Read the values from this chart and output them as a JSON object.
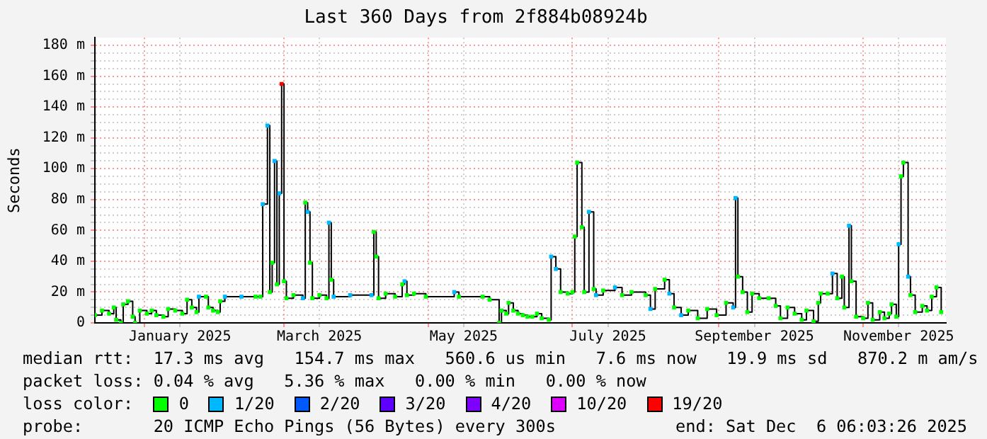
{
  "chart_data": {
    "type": "step",
    "title": "Last 360 Days from 2f884b08924b",
    "ylabel": "Seconds",
    "x": [
      "2024-12-11",
      "2024-12-14",
      "2024-12-17",
      "2024-12-19",
      "2024-12-20",
      "2024-12-22",
      "2024-12-23",
      "2024-12-25",
      "2024-12-27",
      "2024-12-28",
      "2024-12-30",
      "2025-01-02",
      "2025-01-04",
      "2025-01-06",
      "2025-01-09",
      "2025-01-11",
      "2025-01-14",
      "2025-01-17",
      "2025-01-19",
      "2025-01-21",
      "2025-01-23",
      "2025-01-24",
      "2025-01-27",
      "2025-01-28",
      "2025-01-30",
      "2025-02-01",
      "2025-02-02",
      "2025-02-04",
      "2025-02-11",
      "2025-02-17",
      "2025-02-19",
      "2025-02-20",
      "2025-02-22",
      "2025-02-23",
      "2025-02-24",
      "2025-02-25",
      "2025-02-26",
      "2025-02-27",
      "2025-02-28",
      "2025-03-01",
      "2025-03-02",
      "2025-03-05",
      "2025-03-09",
      "2025-03-10",
      "2025-03-11",
      "2025-03-12",
      "2025-03-13",
      "2025-03-16",
      "2025-03-19",
      "2025-03-20",
      "2025-03-21",
      "2025-03-22",
      "2025-03-29",
      "2025-04-07",
      "2025-04-08",
      "2025-04-09",
      "2025-04-10",
      "2025-04-13",
      "2025-04-17",
      "2025-04-20",
      "2025-04-21",
      "2025-04-22",
      "2025-04-25",
      "2025-04-30",
      "2025-05-12",
      "2025-05-14",
      "2025-05-24",
      "2025-05-27",
      "2025-05-31",
      "2025-06-01",
      "2025-06-03",
      "2025-06-04",
      "2025-06-06",
      "2025-06-08",
      "2025-06-10",
      "2025-06-12",
      "2025-06-14",
      "2025-06-16",
      "2025-06-18",
      "2025-06-21",
      "2025-06-22",
      "2025-06-24",
      "2025-06-26",
      "2025-06-29",
      "2025-07-01",
      "2025-07-02",
      "2025-07-03",
      "2025-07-05",
      "2025-07-06",
      "2025-07-08",
      "2025-07-10",
      "2025-07-11",
      "2025-07-14",
      "2025-07-19",
      "2025-07-22",
      "2025-07-26",
      "2025-08-01",
      "2025-08-03",
      "2025-08-05",
      "2025-08-09",
      "2025-08-11",
      "2025-08-13",
      "2025-08-16",
      "2025-08-19",
      "2025-08-23",
      "2025-08-27",
      "2025-08-31",
      "2025-09-04",
      "2025-09-07",
      "2025-09-08",
      "2025-09-09",
      "2025-09-11",
      "2025-09-13",
      "2025-09-15",
      "2025-09-18",
      "2025-09-22",
      "2025-09-25",
      "2025-09-27",
      "2025-09-30",
      "2025-10-03",
      "2025-10-06",
      "2025-10-08",
      "2025-10-11",
      "2025-10-13",
      "2025-10-14",
      "2025-10-17",
      "2025-10-19",
      "2025-10-21",
      "2025-10-23",
      "2025-10-24",
      "2025-10-26",
      "2025-10-27",
      "2025-10-29",
      "2025-11-01",
      "2025-11-03",
      "2025-11-05",
      "2025-11-08",
      "2025-11-10",
      "2025-11-12",
      "2025-11-13",
      "2025-11-15",
      "2025-11-16",
      "2025-11-17",
      "2025-11-18",
      "2025-11-20",
      "2025-11-21",
      "2025-11-23",
      "2025-11-26",
      "2025-11-28",
      "2025-11-30",
      "2025-12-02",
      "2025-12-04"
    ],
    "series": [
      {
        "color": "#000000",
        "values": [
          5,
          8,
          6,
          10,
          2,
          0,
          12,
          14,
          4,
          0,
          8,
          6,
          8,
          5,
          4,
          9,
          8,
          6,
          15,
          10,
          7,
          17,
          17,
          10,
          8,
          7,
          14,
          17,
          17,
          17,
          17,
          77,
          128,
          20,
          39,
          105,
          25,
          84,
          155,
          27,
          16,
          18,
          16,
          78,
          72,
          39,
          16,
          18,
          16,
          65,
          28,
          17,
          18,
          18,
          59,
          43,
          16,
          19,
          17,
          25,
          27,
          18,
          19,
          17,
          20,
          17,
          17,
          15,
          0,
          8,
          6,
          13,
          8,
          6,
          5,
          4,
          4,
          6,
          3,
          2,
          43,
          35,
          20,
          19,
          20,
          56,
          104,
          62,
          20,
          72,
          22,
          18,
          21,
          23,
          18,
          20,
          18,
          9,
          22,
          28,
          19,
          10,
          5,
          8,
          3,
          9,
          5,
          13,
          10,
          81,
          30,
          20,
          7,
          19,
          16,
          16,
          11,
          3,
          10,
          6,
          2,
          8,
          1,
          13,
          19,
          19,
          32,
          16,
          30,
          10,
          63,
          27,
          4,
          3,
          13,
          2,
          7,
          3,
          6,
          12,
          4,
          51,
          95,
          104,
          30,
          18,
          7,
          11,
          8,
          17,
          23,
          7
        ]
      },
      {
        "type": "scatter",
        "marker": "square",
        "name": "0",
        "color": "#00ff00",
        "values": [
          5,
          8,
          6,
          10,
          2,
          0,
          12,
          14,
          4,
          0,
          8,
          6,
          8,
          5,
          4,
          9,
          8,
          6,
          15,
          10,
          7,
          null,
          17,
          10,
          8,
          7,
          14,
          null,
          null,
          17,
          17,
          null,
          null,
          20,
          39,
          null,
          25,
          null,
          null,
          27,
          16,
          18,
          null,
          78,
          null,
          39,
          16,
          18,
          16,
          null,
          28,
          null,
          null,
          null,
          59,
          43,
          16,
          19,
          17,
          25,
          null,
          18,
          19,
          17,
          null,
          17,
          17,
          15,
          0,
          8,
          6,
          13,
          8,
          6,
          5,
          4,
          4,
          6,
          3,
          2,
          null,
          null,
          20,
          19,
          20,
          56,
          104,
          62,
          20,
          null,
          22,
          null,
          21,
          null,
          18,
          20,
          18,
          null,
          22,
          28,
          null,
          10,
          null,
          8,
          3,
          9,
          5,
          13,
          null,
          null,
          30,
          20,
          7,
          19,
          16,
          16,
          11,
          3,
          10,
          6,
          2,
          8,
          1,
          13,
          19,
          19,
          null,
          16,
          30,
          10,
          null,
          27,
          4,
          3,
          13,
          2,
          7,
          3,
          6,
          12,
          4,
          null,
          95,
          104,
          null,
          18,
          7,
          11,
          8,
          17,
          23,
          7
        ]
      },
      {
        "type": "scatter",
        "marker": "square",
        "name": "1/20",
        "color": "#00b8ff",
        "values": [
          null,
          null,
          null,
          null,
          null,
          null,
          null,
          null,
          null,
          null,
          null,
          null,
          null,
          null,
          null,
          null,
          null,
          null,
          null,
          null,
          null,
          17,
          null,
          null,
          null,
          null,
          null,
          17,
          17,
          null,
          null,
          77,
          128,
          null,
          null,
          105,
          null,
          84,
          null,
          null,
          null,
          null,
          16,
          null,
          72,
          null,
          null,
          null,
          null,
          65,
          null,
          17,
          18,
          18,
          null,
          null,
          null,
          null,
          null,
          null,
          27,
          null,
          null,
          null,
          20,
          null,
          null,
          null,
          null,
          null,
          null,
          null,
          null,
          null,
          null,
          null,
          null,
          null,
          null,
          null,
          43,
          35,
          null,
          null,
          null,
          null,
          null,
          null,
          null,
          72,
          null,
          18,
          null,
          23,
          null,
          null,
          null,
          9,
          null,
          null,
          19,
          null,
          5,
          null,
          null,
          null,
          null,
          null,
          10,
          81,
          null,
          null,
          null,
          null,
          null,
          null,
          null,
          null,
          null,
          null,
          null,
          null,
          null,
          null,
          null,
          null,
          32,
          null,
          null,
          null,
          63,
          null,
          null,
          null,
          null,
          null,
          null,
          null,
          null,
          null,
          null,
          51,
          null,
          null,
          30,
          null,
          null,
          null,
          null,
          null,
          null,
          null
        ]
      },
      {
        "type": "scatter",
        "marker": "square",
        "name": "2/20",
        "color": "#0059ff",
        "values": [
          null,
          null,
          null,
          null,
          null,
          null,
          null,
          null,
          null,
          null,
          null,
          null,
          null,
          null,
          null,
          null,
          null,
          null,
          null,
          null,
          null,
          null,
          null,
          null,
          null,
          null,
          null,
          null,
          null,
          null,
          null,
          null,
          null,
          null,
          null,
          null,
          null,
          null,
          null,
          null,
          null,
          null,
          null,
          null,
          null,
          null,
          null,
          null,
          null,
          null,
          null,
          null,
          null,
          null,
          null,
          null,
          null,
          null,
          null,
          null,
          null,
          null,
          null,
          null,
          null,
          null,
          null,
          null,
          null,
          null,
          null,
          null,
          null,
          null,
          null,
          null,
          null,
          null,
          null,
          null,
          null,
          null,
          null,
          null,
          null,
          null,
          null,
          null,
          null,
          null,
          null,
          null,
          null,
          null,
          null,
          null,
          null,
          null,
          null,
          null,
          null,
          null,
          null,
          null,
          null,
          null,
          null,
          null,
          null,
          null,
          null,
          null,
          null,
          null,
          null,
          null,
          null,
          null,
          null,
          null,
          null,
          null,
          null,
          null,
          null,
          null,
          null,
          null,
          null,
          null,
          null,
          null,
          null,
          null,
          null,
          null,
          null,
          null,
          null,
          null,
          null,
          null,
          null,
          null,
          null,
          null,
          null,
          null,
          null,
          null,
          null,
          null
        ]
      },
      {
        "type": "scatter",
        "marker": "square",
        "name": "3/20",
        "color": "#5e00ff",
        "values": [
          null,
          null,
          null,
          null,
          null,
          null,
          null,
          null,
          null,
          null,
          null,
          null,
          null,
          null,
          null,
          null,
          null,
          null,
          null,
          null,
          null,
          null,
          null,
          null,
          null,
          null,
          null,
          null,
          null,
          null,
          null,
          null,
          null,
          null,
          null,
          null,
          null,
          null,
          null,
          null,
          null,
          null,
          null,
          null,
          null,
          null,
          null,
          null,
          null,
          null,
          null,
          null,
          null,
          null,
          null,
          null,
          null,
          null,
          null,
          null,
          null,
          null,
          null,
          null,
          null,
          null,
          null,
          null,
          null,
          null,
          null,
          null,
          null,
          null,
          null,
          null,
          null,
          null,
          null,
          null,
          null,
          null,
          null,
          null,
          null,
          null,
          null,
          null,
          null,
          null,
          null,
          null,
          null,
          null,
          null,
          null,
          null,
          null,
          null,
          null,
          null,
          null,
          null,
          null,
          null,
          null,
          null,
          null,
          null,
          null,
          null,
          null,
          null,
          null,
          null,
          null,
          null,
          null,
          null,
          null,
          null,
          null,
          null,
          null,
          null,
          null,
          null,
          null,
          null,
          null,
          null,
          null,
          null,
          null,
          null,
          null,
          null,
          null,
          null,
          null,
          null,
          null,
          null,
          null,
          null,
          null,
          null,
          null,
          null,
          null,
          null,
          null
        ]
      },
      {
        "type": "scatter",
        "marker": "square",
        "name": "4/20",
        "color": "#7e00ff",
        "values": [
          null,
          null,
          null,
          null,
          null,
          null,
          null,
          null,
          null,
          null,
          null,
          null,
          null,
          null,
          null,
          null,
          null,
          null,
          null,
          null,
          null,
          null,
          null,
          null,
          null,
          null,
          null,
          null,
          null,
          null,
          null,
          null,
          null,
          null,
          null,
          null,
          null,
          null,
          null,
          null,
          null,
          null,
          null,
          null,
          null,
          null,
          null,
          null,
          null,
          null,
          null,
          null,
          null,
          null,
          null,
          null,
          null,
          null,
          null,
          null,
          null,
          null,
          null,
          null,
          null,
          null,
          null,
          null,
          null,
          null,
          null,
          null,
          null,
          null,
          null,
          null,
          null,
          null,
          null,
          null,
          null,
          null,
          null,
          null,
          null,
          null,
          null,
          null,
          null,
          null,
          null,
          null,
          null,
          null,
          null,
          null,
          null,
          null,
          null,
          null,
          null,
          null,
          null,
          null,
          null,
          null,
          null,
          null,
          null,
          null,
          null,
          null,
          null,
          null,
          null,
          null,
          null,
          null,
          null,
          null,
          null,
          null,
          null,
          null,
          null,
          null,
          null,
          null,
          null,
          null,
          null,
          null,
          null,
          null,
          null,
          null,
          null,
          null,
          null,
          null,
          null,
          null,
          null,
          null,
          null,
          null,
          null,
          null,
          null,
          null,
          null,
          null
        ]
      },
      {
        "type": "scatter",
        "marker": "square",
        "name": "10/20",
        "color": "#dd00ff",
        "values": [
          null,
          null,
          null,
          null,
          null,
          null,
          null,
          null,
          null,
          null,
          null,
          null,
          null,
          null,
          null,
          null,
          null,
          null,
          null,
          null,
          null,
          null,
          null,
          null,
          null,
          null,
          null,
          null,
          null,
          null,
          null,
          null,
          null,
          null,
          null,
          null,
          null,
          null,
          null,
          null,
          null,
          null,
          null,
          null,
          null,
          null,
          null,
          null,
          null,
          null,
          null,
          null,
          null,
          null,
          null,
          null,
          null,
          null,
          null,
          null,
          null,
          null,
          null,
          null,
          null,
          null,
          null,
          null,
          null,
          null,
          null,
          null,
          null,
          null,
          null,
          null,
          null,
          null,
          null,
          null,
          null,
          null,
          null,
          null,
          null,
          null,
          null,
          null,
          null,
          null,
          null,
          null,
          null,
          null,
          null,
          null,
          null,
          null,
          null,
          null,
          null,
          null,
          null,
          null,
          null,
          null,
          null,
          null,
          null,
          null,
          null,
          null,
          null,
          null,
          null,
          null,
          null,
          null,
          null,
          null,
          null,
          null,
          null,
          null,
          null,
          null,
          null,
          null,
          null,
          null,
          null,
          null,
          null,
          null,
          null,
          null,
          null,
          null,
          null,
          null,
          null,
          null,
          null,
          null,
          null,
          null,
          null,
          null,
          null,
          null,
          null,
          null
        ]
      },
      {
        "type": "scatter",
        "marker": "square",
        "name": "19/20",
        "color": "#ff0000",
        "values": [
          null,
          null,
          null,
          null,
          null,
          null,
          null,
          null,
          null,
          null,
          null,
          null,
          null,
          null,
          null,
          null,
          null,
          null,
          null,
          null,
          null,
          null,
          null,
          null,
          null,
          null,
          null,
          null,
          null,
          null,
          null,
          null,
          null,
          null,
          null,
          null,
          null,
          null,
          155,
          null,
          null,
          null,
          null,
          null,
          null,
          null,
          null,
          null,
          null,
          null,
          null,
          null,
          null,
          null,
          null,
          null,
          null,
          null,
          null,
          null,
          null,
          null,
          null,
          null,
          null,
          null,
          null,
          null,
          null,
          null,
          null,
          null,
          null,
          null,
          null,
          null,
          null,
          null,
          null,
          null,
          null,
          null,
          null,
          null,
          null,
          null,
          null,
          null,
          null,
          null,
          null,
          null,
          null,
          null,
          null,
          null,
          null,
          null,
          null,
          null,
          null,
          null,
          null,
          null,
          null,
          null,
          null,
          null,
          null,
          null,
          null,
          null,
          null,
          null,
          null,
          null,
          null,
          null,
          null,
          null,
          null,
          null,
          null,
          null,
          null,
          null,
          null,
          null,
          null,
          null,
          null,
          null,
          null,
          null,
          null,
          null,
          null,
          null,
          null,
          null,
          null,
          null,
          null,
          null,
          null,
          null,
          null,
          null,
          null,
          null,
          null,
          null
        ]
      }
    ],
    "xlim": [
      "2024-12-11",
      "2025-12-06"
    ],
    "xticks": [
      {
        "value": "2025-01-01",
        "label": null
      },
      {
        "value": "2025-01-16",
        "label": "January 2025"
      },
      {
        "value": "2025-03-01",
        "label": null
      },
      {
        "value": "2025-03-16",
        "label": "March 2025"
      },
      {
        "value": "2025-05-01",
        "label": null
      },
      {
        "value": "2025-05-16",
        "label": "May 2025"
      },
      {
        "value": "2025-07-01",
        "label": null
      },
      {
        "value": "2025-07-16",
        "label": "July 2025"
      },
      {
        "value": "2025-09-01",
        "label": null
      },
      {
        "value": "2025-09-16",
        "label": "September 2025"
      },
      {
        "value": "2025-11-01",
        "label": null
      },
      {
        "value": "2025-11-16",
        "label": "November 2025"
      }
    ],
    "ylim": [
      0,
      185
    ],
    "yticks": [
      0,
      {
        "value": 5,
        "label": null
      },
      {
        "value": 10,
        "label": null
      },
      {
        "value": 15,
        "label": null
      },
      {
        "value": 20,
        "label": "20 m"
      },
      {
        "value": 25,
        "label": null
      },
      {
        "value": 30,
        "label": null
      },
      {
        "value": 35,
        "label": null
      },
      {
        "value": 40,
        "label": "40 m"
      },
      {
        "value": 45,
        "label": null
      },
      {
        "value": 50,
        "label": null
      },
      {
        "value": 55,
        "label": null
      },
      {
        "value": 60,
        "label": "60 m"
      },
      {
        "value": 65,
        "label": null
      },
      {
        "value": 70,
        "label": null
      },
      {
        "value": 75,
        "label": null
      },
      {
        "value": 80,
        "label": "80 m"
      },
      {
        "value": 85,
        "label": null
      },
      {
        "value": 90,
        "label": null
      },
      {
        "value": 95,
        "label": null
      },
      {
        "value": 100,
        "label": "100 m"
      },
      {
        "value": 105,
        "label": null
      },
      {
        "value": 110,
        "label": null
      },
      {
        "value": 115,
        "label": null
      },
      {
        "value": 120,
        "label": "120 m"
      },
      {
        "value": 125,
        "label": null
      },
      {
        "value": 130,
        "label": null
      },
      {
        "value": 135,
        "label": null
      },
      {
        "value": 140,
        "label": "140 m"
      },
      {
        "value": 145,
        "label": null
      },
      {
        "value": 150,
        "label": null
      },
      {
        "value": 155,
        "label": null
      },
      {
        "value": 160,
        "label": "160 m"
      },
      {
        "value": 165,
        "label": null
      },
      {
        "value": 170,
        "label": null
      },
      {
        "value": 175,
        "label": null
      },
      {
        "value": 180,
        "label": "180 m"
      }
    ],
    "grid": true,
    "legend": "bottom",
    "legend_title": "loss color:",
    "annotations": [
      "median rtt:  17.3 ms avg   154.7 ms max   560.6 us min   7.6 ms now   19.9 ms sd   870.2 m am/s",
      "packet loss: 0.04 % avg   5.36 % max   0.00 % min   0.00 % now",
      "probe:       20 ICMP Echo Pings (56 Bytes) every 300s",
      "end: Sat Dec  6 06:03:26 2025"
    ]
  }
}
